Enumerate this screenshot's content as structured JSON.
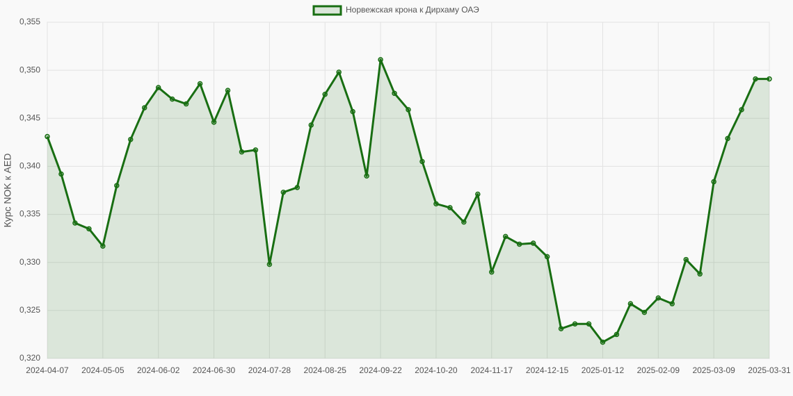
{
  "chart_data": {
    "type": "line",
    "legend_label": "Норвежская крона к Дирхаму ОАЭ",
    "y_label": "Курс NOK к AED",
    "categories": [
      "2024-04-07",
      null,
      null,
      null,
      "2024-05-05",
      null,
      null,
      null,
      "2024-06-02",
      null,
      null,
      null,
      "2024-06-30",
      null,
      null,
      null,
      "2024-07-28",
      null,
      null,
      null,
      "2024-08-25",
      null,
      null,
      null,
      "2024-09-22",
      null,
      null,
      null,
      "2024-10-20",
      null,
      null,
      null,
      "2024-11-17",
      null,
      null,
      null,
      "2024-12-15",
      null,
      null,
      null,
      "2025-01-12",
      null,
      null,
      null,
      "2025-02-09",
      null,
      null,
      null,
      "2025-03-09",
      null,
      null,
      null,
      "2025-03-31"
    ],
    "series": [
      {
        "name": "Норвежская крона к Дирхаму ОАЭ",
        "color": "#186e12",
        "fill": "rgba(24,110,18,0.13)",
        "values": [
          0.3431,
          0.3392,
          0.3341,
          0.3335,
          0.3317,
          0.338,
          0.3428,
          0.3461,
          0.3482,
          0.347,
          0.3465,
          0.3486,
          0.3446,
          0.3479,
          0.3415,
          0.3417,
          0.3298,
          0.3373,
          0.3378,
          0.3443,
          0.3475,
          0.3498,
          0.3457,
          0.339,
          0.3511,
          0.3476,
          0.3459,
          0.3405,
          0.3361,
          0.3357,
          0.3342,
          0.3371,
          0.329,
          0.3327,
          0.3319,
          0.332,
          0.3306,
          0.3231,
          0.3236,
          0.3236,
          0.3217,
          0.3225,
          0.3257,
          0.3248,
          0.3263,
          0.3257,
          0.3303,
          0.3288,
          0.3384,
          0.3429,
          0.3459,
          0.3491,
          0.3491
        ]
      }
    ],
    "ylim": [
      0.32,
      0.355
    ],
    "yticks": [
      {
        "value": 0.32,
        "label": "0,320"
      },
      {
        "value": 0.325,
        "label": "0,325"
      },
      {
        "value": 0.33,
        "label": "0,330"
      },
      {
        "value": 0.335,
        "label": "0,335"
      },
      {
        "value": 0.34,
        "label": "0,340"
      },
      {
        "value": 0.345,
        "label": "0,345"
      },
      {
        "value": 0.35,
        "label": "0,350"
      },
      {
        "value": 0.355,
        "label": "0,355"
      }
    ],
    "grid": true
  }
}
